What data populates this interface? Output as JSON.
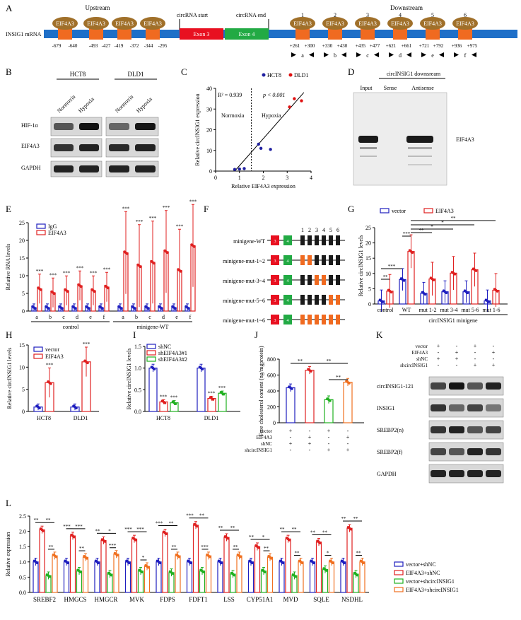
{
  "panels": {
    "A": "A",
    "B": "B",
    "C": "C",
    "D": "D",
    "E": "E",
    "F": "F",
    "G": "G",
    "H": "H",
    "I": "I",
    "J": "J",
    "K": "K",
    "L": "L"
  },
  "panel_a": {
    "row_label": "INSIG1 mRNA",
    "upstream": "Upstream",
    "downstream": "Downstream",
    "circ_start": "circRNA start",
    "circ_end": "circRNA end",
    "exon3": "Exon 3",
    "exon4": "Exon 4",
    "protein": "EIF4A3",
    "site_numbers": [
      "1",
      "2",
      "3",
      "4",
      "5",
      "6"
    ],
    "upstream_positions": [
      "-679",
      "-640",
      "-493",
      "-427",
      "-419",
      "-372",
      "-344",
      "-295"
    ],
    "downstream_positions": [
      "+261",
      "+300",
      "+330",
      "+430",
      "+435",
      "+477",
      "+621",
      "+661",
      "+721",
      "+792",
      "+936",
      "+975"
    ],
    "primer_labels": [
      "a",
      "b",
      "c",
      "d",
      "e",
      "f"
    ]
  },
  "panel_b": {
    "cell_lines": [
      "HCT8",
      "DLD1"
    ],
    "conditions": [
      "Normoxia",
      "Hypoxia"
    ],
    "rows": [
      "HIF-1α",
      "EIF4A3",
      "GAPDH"
    ]
  },
  "panel_c": {
    "chart_data": {
      "type": "scatter",
      "xlabel": "Relative EIF4A3 expression",
      "ylabel": "Relative circINSIG1 expression",
      "xlim": [
        0,
        4
      ],
      "ylim": [
        0,
        40
      ],
      "xticks": [
        "0",
        "1",
        "2",
        "3",
        "4"
      ],
      "yticks": [
        "0",
        "10",
        "20",
        "30",
        "40"
      ],
      "stat_r2": "R² = 0.939",
      "stat_p": "p < 0.001",
      "region_labels": [
        "Normoxia",
        "Hypoxia"
      ],
      "legend": [
        "HCT8",
        "DLD1"
      ],
      "series": [
        {
          "name": "HCT8",
          "color": "#2020a0",
          "points": [
            [
              0.8,
              0.8
            ],
            [
              1.0,
              1.0
            ],
            [
              1.2,
              1.2
            ],
            [
              1.8,
              13
            ],
            [
              1.9,
              11
            ],
            [
              2.3,
              10.5
            ]
          ]
        },
        {
          "name": "DLD1",
          "color": "#e01010",
          "points": [
            [
              3.1,
              31
            ],
            [
              3.3,
              35
            ],
            [
              3.6,
              34
            ]
          ]
        }
      ],
      "fit": [
        [
          0.8,
          -3
        ],
        [
          3.7,
          38
        ]
      ]
    }
  },
  "panel_d": {
    "title": "circINSIG1 downsream",
    "lanes": [
      "Input",
      "Sense",
      "Antisense"
    ],
    "band_label": "EIF4A3"
  },
  "panel_e": {
    "chart_data": {
      "type": "bar",
      "ylabel": "Relative RNA levels",
      "ylim": [
        0,
        25
      ],
      "yticks": [
        "0",
        "5",
        "10",
        "15",
        "20",
        "25"
      ],
      "categories": [
        "a",
        "b",
        "c",
        "d",
        "e",
        "f",
        "a",
        "b",
        "c",
        "d",
        "e",
        "f"
      ],
      "groups": [
        "control",
        "minigene-WT"
      ],
      "series": [
        {
          "name": "IgG",
          "color": "#1f1fbf",
          "values": [
            1,
            1,
            1,
            1,
            1,
            1,
            1,
            1,
            1,
            1,
            1,
            1
          ]
        },
        {
          "name": "EIF4A3",
          "color": "#e02020",
          "values": [
            6.3,
            5.2,
            5.8,
            7.2,
            5.8,
            6.8,
            16.5,
            12.8,
            13.8,
            16.8,
            11.5,
            18.5
          ]
        }
      ],
      "sig": [
        "***",
        "***",
        "***",
        "***",
        "***",
        "***",
        "***",
        "***",
        "***",
        "***",
        "***",
        "***"
      ]
    }
  },
  "panel_f": {
    "site_numbers": [
      "1",
      "2",
      "3",
      "4",
      "5",
      "6"
    ],
    "rows": [
      "minigene-WT",
      "minigene-mut-1~2",
      "minigene-mut-3~4",
      "minigene-mut-5~6",
      "minigene-mut-1~6"
    ],
    "exon3": "3",
    "exon4": "4"
  },
  "panel_g": {
    "chart_data": {
      "type": "bar",
      "ylabel": "Relative circINSIG1 levels",
      "ylim": [
        0,
        25
      ],
      "yticks": [
        "0",
        "5",
        "10",
        "15",
        "20",
        "25"
      ],
      "categories": [
        "control",
        "WT",
        "mut 1-2",
        "mut 3-4",
        "mut 5-6",
        "mut 1-6"
      ],
      "group_label": "circINSIG1 minigene",
      "legend": [
        "vector",
        "EIF4A3"
      ],
      "series": [
        {
          "name": "vector",
          "color": "#1f1fbf",
          "values": [
            1,
            8,
            3.5,
            4,
            4,
            1
          ]
        },
        {
          "name": "EIF4A3",
          "color": "#e02020",
          "values": [
            4.2,
            17.2,
            8.2,
            10.1,
            11.2,
            4.5
          ]
        }
      ],
      "sig_labels": [
        "**",
        "***",
        "***",
        "**",
        "*",
        "*",
        "**"
      ]
    }
  },
  "panel_h": {
    "chart_data": {
      "type": "bar",
      "ylabel": "Relative circINSIG1 levels",
      "ylim": [
        0,
        15
      ],
      "yticks": [
        "0",
        "5",
        "10",
        "15"
      ],
      "categories": [
        "HCT8",
        "DLD1"
      ],
      "legend": [
        "vector",
        "EIF4A3"
      ],
      "series": [
        {
          "name": "vector",
          "color": "#1f1fbf",
          "values": [
            1,
            1
          ]
        },
        {
          "name": "EIF4A3",
          "color": "#e02020",
          "values": [
            6.5,
            11.2
          ]
        }
      ],
      "sig": [
        "***",
        "***"
      ]
    }
  },
  "panel_i": {
    "chart_data": {
      "type": "bar",
      "ylabel": "Relative circINSIG1 levels",
      "ylim": [
        0,
        1.5
      ],
      "yticks": [
        "0.0",
        "0.5",
        "1.0",
        "1.5"
      ],
      "categories": [
        "HCT8",
        "DLD1"
      ],
      "legend": [
        "shNC",
        "shEIF4A3#1",
        "shEIF4A3#2"
      ],
      "series": [
        {
          "name": "shNC",
          "color": "#1f1fbf",
          "values": [
            1.0,
            1.0
          ]
        },
        {
          "name": "shEIF4A3#1",
          "color": "#e02020",
          "values": [
            0.22,
            0.3
          ]
        },
        {
          "name": "shEIF4A3#2",
          "color": "#20b020",
          "values": [
            0.2,
            0.42
          ]
        }
      ],
      "sig": [
        "***",
        "***",
        "***",
        "***"
      ]
    }
  },
  "panel_j": {
    "chart_data": {
      "type": "bar",
      "ylabel": "Free cholesterol content (ng/mgprotein)",
      "ylim": [
        0,
        800
      ],
      "yticks": [
        "0",
        "200",
        "400",
        "600",
        "800"
      ],
      "colors": [
        "#1f1fbf",
        "#e02020",
        "#20b020",
        "#f07020"
      ],
      "values": [
        440,
        660,
        290,
        510
      ],
      "row_labels": [
        "vector",
        "EIF4A3",
        "shNC",
        "shcircINSIG1"
      ],
      "matrix": [
        [
          "+",
          "-",
          "+",
          "-"
        ],
        [
          "-",
          "+",
          "-",
          "+"
        ],
        [
          "+",
          "+",
          "-",
          "-"
        ],
        [
          "-",
          "-",
          "+",
          "+"
        ]
      ],
      "sig": [
        "**",
        "**",
        "**"
      ]
    }
  },
  "panel_k": {
    "row_labels": [
      "vector",
      "EIF4A3",
      "shNC",
      "shcircINSIG1"
    ],
    "matrix": [
      [
        "+",
        "-",
        "+",
        "-"
      ],
      [
        "-",
        "+",
        "-",
        "+"
      ],
      [
        "+",
        "+",
        "-",
        "-"
      ],
      [
        "-",
        "-",
        "+",
        "+"
      ]
    ],
    "blots": [
      "circINSIG1-121",
      "INSIG1",
      "SREBP2(n)",
      "SREBP2(f)",
      "GAPDH"
    ]
  },
  "panel_l": {
    "chart_data": {
      "type": "bar",
      "ylabel": "Relative expression",
      "ylim": [
        0,
        2.5
      ],
      "yticks": [
        "0.0",
        "0.5",
        "1.0",
        "1.5",
        "2.0",
        "2.5"
      ],
      "categories": [
        "SREBF2",
        "HMGCS",
        "HMGCR",
        "MVK",
        "FDPS",
        "FDFT1",
        "LSS",
        "CYP51A1",
        "MVD",
        "SQLE",
        "NSDHL"
      ],
      "series": [
        {
          "name": "vector+shNC",
          "color": "#1f1fbf",
          "values": [
            1,
            1,
            1,
            1,
            1,
            1,
            1,
            1,
            1,
            1,
            1
          ]
        },
        {
          "name": "EIF4A3+shNC",
          "color": "#e02020",
          "values": [
            2.05,
            1.85,
            1.7,
            1.75,
            1.95,
            2.2,
            1.8,
            1.5,
            1.75,
            1.65,
            2.1
          ]
        },
        {
          "name": "vector+shcircINSIG1",
          "color": "#20b020",
          "values": [
            0.55,
            0.7,
            0.6,
            0.7,
            0.65,
            0.7,
            0.6,
            0.7,
            0.55,
            0.75,
            0.6
          ]
        },
        {
          "name": "EIF4A3+shcircINSIG1",
          "color": "#f07020",
          "values": [
            1.2,
            1.15,
            1.25,
            0.85,
            1.2,
            1.2,
            1.2,
            1.15,
            1.0,
            1.0,
            1.0
          ]
        }
      ],
      "sig_top": [
        [
          "**",
          "**"
        ],
        [
          "***",
          "***"
        ],
        [
          "**",
          "*"
        ],
        [
          "***",
          "***"
        ],
        [
          "***",
          "**"
        ],
        [
          "***",
          "**"
        ],
        [
          "**",
          "**"
        ],
        [
          "**",
          "*"
        ],
        [
          "**",
          "**"
        ],
        [
          "**",
          "**"
        ],
        [
          "**",
          "**"
        ]
      ],
      "sig_low": [
        "**",
        "**",
        "***",
        "*",
        "**",
        "***",
        "**",
        "**",
        "**",
        "*",
        "**"
      ]
    }
  }
}
